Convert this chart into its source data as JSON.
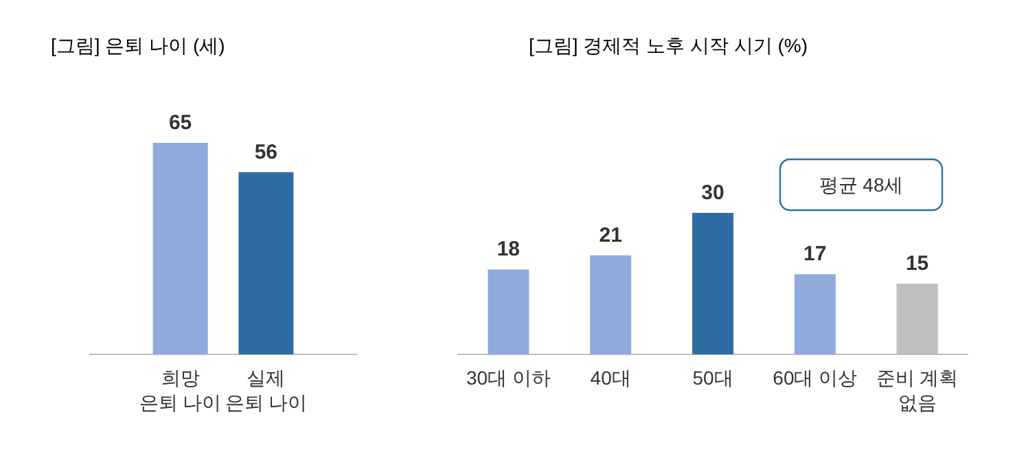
{
  "chart_data": [
    {
      "type": "bar",
      "title": "[그림] 은퇴 나이 (세)",
      "categories": [
        "희망\n은퇴 나이",
        "실제\n은퇴 나이"
      ],
      "values": [
        65,
        56
      ],
      "colors": [
        "#8faadc",
        "#2e6da4"
      ],
      "data_labels": true
    },
    {
      "type": "bar",
      "title": "[그림] 경제적 노후 시작 시기 (%)",
      "categories": [
        "30대 이하",
        "40대",
        "50대",
        "60대 이상",
        "준비 계획\n없음"
      ],
      "values": [
        18,
        21,
        30,
        17,
        15
      ],
      "colors": [
        "#8faadc",
        "#8faadc",
        "#2e6da4",
        "#8faadc",
        "#bfbfbf"
      ],
      "data_labels": true,
      "annotations": [
        "평균 48세"
      ]
    }
  ]
}
